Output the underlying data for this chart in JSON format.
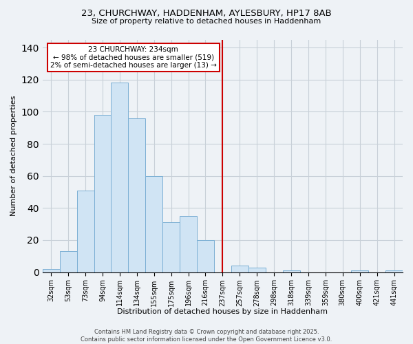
{
  "title": "23, CHURCHWAY, HADDENHAM, AYLESBURY, HP17 8AB",
  "subtitle": "Size of property relative to detached houses in Haddenham",
  "xlabel": "Distribution of detached houses by size in Haddenham",
  "ylabel": "Number of detached properties",
  "bar_color": "#d0e4f4",
  "bar_edge_color": "#7bafd4",
  "grid_color": "#c8d0d8",
  "background_color": "#eef2f6",
  "categories": [
    "32sqm",
    "53sqm",
    "73sqm",
    "94sqm",
    "114sqm",
    "134sqm",
    "155sqm",
    "175sqm",
    "196sqm",
    "216sqm",
    "237sqm",
    "257sqm",
    "278sqm",
    "298sqm",
    "318sqm",
    "339sqm",
    "359sqm",
    "380sqm",
    "400sqm",
    "421sqm",
    "441sqm"
  ],
  "values": [
    2,
    13,
    51,
    98,
    118,
    96,
    60,
    31,
    35,
    20,
    0,
    4,
    3,
    0,
    1,
    0,
    0,
    0,
    1,
    0,
    1
  ],
  "vline_idx": 10,
  "vline_color": "#cc0000",
  "annotation_title": "23 CHURCHWAY: 234sqm",
  "annotation_line1": "← 98% of detached houses are smaller (519)",
  "annotation_line2": "2% of semi-detached houses are larger (13) →",
  "ylim": [
    0,
    145
  ],
  "yticks": [
    0,
    20,
    40,
    60,
    80,
    100,
    120,
    140
  ],
  "footer_line1": "Contains HM Land Registry data © Crown copyright and database right 2025.",
  "footer_line2": "Contains public sector information licensed under the Open Government Licence v3.0."
}
